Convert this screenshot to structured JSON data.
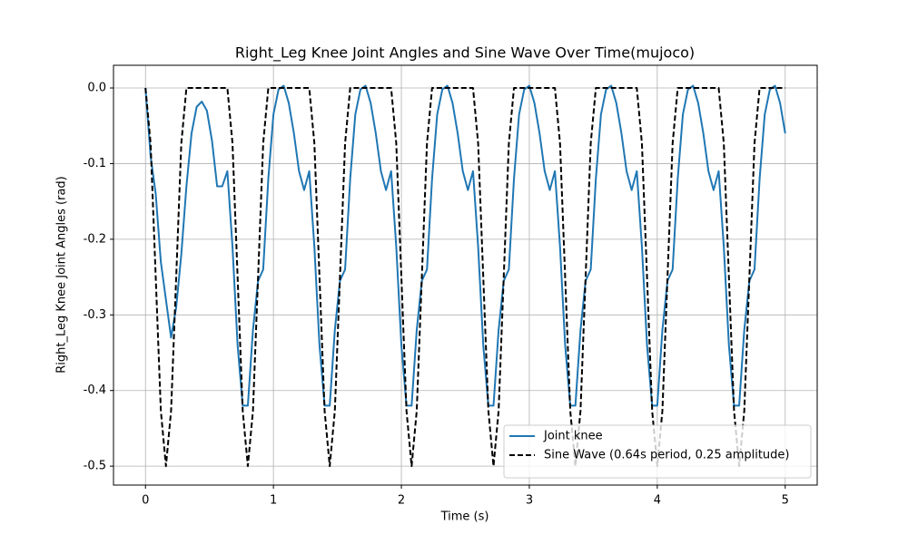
{
  "chart_data": {
    "type": "line",
    "title": "Right_Leg Knee Joint Angles and Sine Wave Over Time(mujoco)",
    "x_label": "Time (s)",
    "y_label": "Right_Leg Knee Joint Angles (rad)",
    "x": [
      0,
      0.04,
      0.08,
      0.12,
      0.16,
      0.2,
      0.24,
      0.28,
      0.32,
      0.36,
      0.4,
      0.44,
      0.48,
      0.52,
      0.56,
      0.6,
      0.64,
      0.68,
      0.72,
      0.76,
      0.8,
      0.84,
      0.88,
      0.92,
      0.96,
      1,
      1.04,
      1.08,
      1.12,
      1.16,
      1.2,
      1.24,
      1.28,
      1.32,
      1.36,
      1.4,
      1.44,
      1.48,
      1.52,
      1.56,
      1.6,
      1.64,
      1.68,
      1.72,
      1.76,
      1.8,
      1.84,
      1.88,
      1.92,
      1.96,
      2,
      2.04,
      2.08,
      2.12,
      2.16,
      2.2,
      2.24,
      2.28,
      2.32,
      2.36,
      2.4,
      2.44,
      2.48,
      2.52,
      2.56,
      2.6,
      2.64,
      2.68,
      2.72,
      2.76,
      2.8,
      2.84,
      2.88,
      2.92,
      2.96,
      3,
      3.04,
      3.08,
      3.12,
      3.16,
      3.2,
      3.24,
      3.28,
      3.32,
      3.36,
      3.4,
      3.44,
      3.48,
      3.52,
      3.56,
      3.6,
      3.64,
      3.68,
      3.72,
      3.76,
      3.8,
      3.84,
      3.88,
      3.92,
      3.96,
      4,
      4.04,
      4.08,
      4.12,
      4.16,
      4.2,
      4.24,
      4.28,
      4.32,
      4.36,
      4.4,
      4.44,
      4.48,
      4.52,
      4.56,
      4.6,
      4.64,
      4.68,
      4.72,
      4.76,
      4.8,
      4.84,
      4.88,
      4.92,
      4.96,
      5
    ],
    "series": [
      {
        "name": "Joint knee",
        "color": "#1f77b4",
        "linestyle": "solid",
        "values": [
          0,
          -0.09,
          -0.14,
          -0.23,
          -0.28,
          -0.33,
          -0.29,
          -0.22,
          -0.13,
          -0.06,
          -0.025,
          -0.018,
          -0.03,
          -0.07,
          -0.13,
          -0.13,
          -0.11,
          -0.21,
          -0.34,
          -0.42,
          -0.42,
          -0.32,
          -0.255,
          -0.24,
          -0.12,
          -0.035,
          -0.002,
          0.003,
          -0.02,
          -0.06,
          -0.11,
          -0.135,
          -0.11,
          -0.21,
          -0.34,
          -0.42,
          -0.42,
          -0.32,
          -0.255,
          -0.24,
          -0.12,
          -0.035,
          -0.002,
          0.003,
          -0.02,
          -0.06,
          -0.11,
          -0.135,
          -0.11,
          -0.21,
          -0.34,
          -0.42,
          -0.42,
          -0.32,
          -0.255,
          -0.24,
          -0.12,
          -0.035,
          -0.002,
          0.003,
          -0.02,
          -0.06,
          -0.11,
          -0.135,
          -0.11,
          -0.21,
          -0.34,
          -0.42,
          -0.42,
          -0.32,
          -0.255,
          -0.24,
          -0.12,
          -0.035,
          -0.002,
          0.003,
          -0.02,
          -0.06,
          -0.11,
          -0.135,
          -0.11,
          -0.21,
          -0.34,
          -0.42,
          -0.42,
          -0.32,
          -0.255,
          -0.24,
          -0.12,
          -0.035,
          -0.002,
          0.003,
          -0.02,
          -0.06,
          -0.11,
          -0.135,
          -0.11,
          -0.21,
          -0.34,
          -0.42,
          -0.42,
          -0.32,
          -0.255,
          -0.24,
          -0.12,
          -0.035,
          -0.002,
          0.003,
          -0.02,
          -0.06,
          -0.11,
          -0.135,
          -0.11,
          -0.21,
          -0.34,
          -0.42,
          -0.42,
          -0.32,
          -0.255,
          -0.24,
          -0.12,
          -0.035,
          -0.002,
          0.003,
          -0.02,
          -0.06
        ]
      },
      {
        "name": "Sine Wave (0.64s period, 0.25 amplitude)",
        "color": "#000000",
        "linestyle": "dashed",
        "values": [
          0,
          -0.0732,
          -0.25,
          -0.4268,
          -0.5,
          -0.4268,
          -0.25,
          -0.0732,
          0,
          0,
          0,
          0,
          0,
          0,
          0,
          0,
          0,
          -0.0732,
          -0.25,
          -0.4268,
          -0.5,
          -0.4268,
          -0.25,
          -0.0732,
          0,
          0,
          0,
          0,
          0,
          0,
          0,
          0,
          0,
          -0.0732,
          -0.25,
          -0.4268,
          -0.5,
          -0.4268,
          -0.25,
          -0.0732,
          0,
          0,
          0,
          0,
          0,
          0,
          0,
          0,
          0,
          -0.0732,
          -0.25,
          -0.4268,
          -0.5,
          -0.4268,
          -0.25,
          -0.0732,
          0,
          0,
          0,
          0,
          0,
          0,
          0,
          0,
          0,
          -0.0732,
          -0.25,
          -0.4268,
          -0.5,
          -0.4268,
          -0.25,
          -0.0732,
          0,
          0,
          0,
          0,
          0,
          0,
          0,
          0,
          0,
          -0.0732,
          -0.25,
          -0.4268,
          -0.5,
          -0.4268,
          -0.25,
          -0.0732,
          0,
          0,
          0,
          0,
          0,
          0,
          0,
          0,
          0,
          -0.0732,
          -0.25,
          -0.4268,
          -0.5,
          -0.4268,
          -0.25,
          -0.0732,
          0,
          0,
          0,
          0,
          0,
          0,
          0,
          0,
          0,
          -0.0732,
          -0.25,
          -0.4268,
          -0.5,
          -0.4268,
          -0.25,
          -0.0732,
          0,
          0,
          0,
          0,
          0,
          0
        ]
      }
    ],
    "xlim": [
      -0.25,
      5.25
    ],
    "xticks": [
      0,
      1,
      2,
      3,
      4,
      5
    ],
    "ylim": [
      -0.525,
      0.03
    ],
    "yticks": [
      -0.5,
      -0.4,
      -0.3,
      -0.2,
      -0.1,
      {
        "value": 0,
        "label": "0.0"
      }
    ],
    "grid": true,
    "legend": "lower right"
  }
}
